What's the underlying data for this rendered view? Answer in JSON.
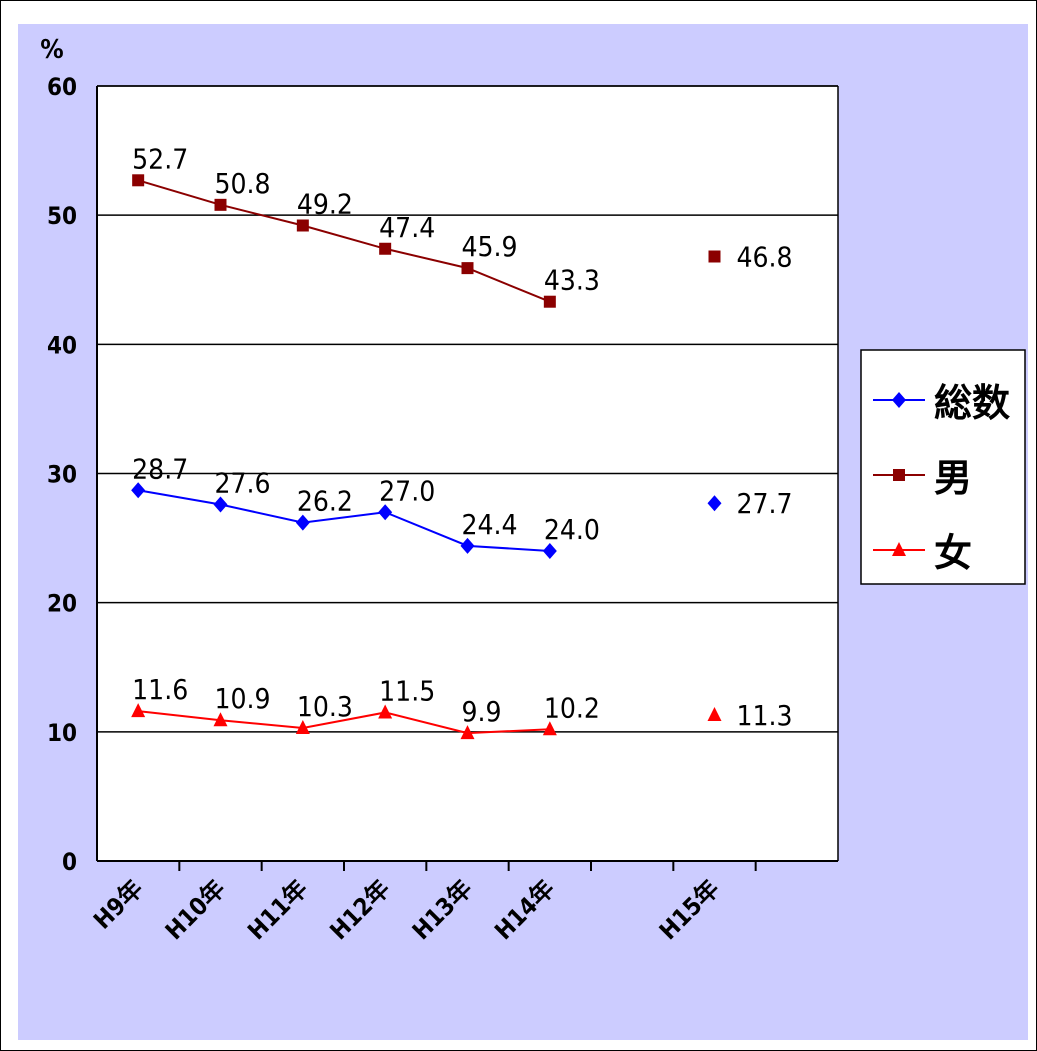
{
  "chart_data": {
    "type": "line",
    "title": "",
    "ylabel": "%",
    "xlabel": "",
    "ylim": [
      0,
      60
    ],
    "yticks": [
      0,
      10,
      20,
      30,
      40,
      50,
      60
    ],
    "categories": [
      "H9年",
      "H10年",
      "H11年",
      "H12年",
      "H13年",
      "H14年",
      "",
      "H15年",
      ""
    ],
    "grid": true,
    "legend_position": "right",
    "series": [
      {
        "name": "総数",
        "color": "#0000ff",
        "marker": "diamond",
        "values": [
          28.7,
          27.6,
          26.2,
          27.0,
          24.4,
          24.0,
          null,
          27.7,
          null
        ],
        "labels": [
          "28.7",
          "27.6",
          "26.2",
          "27.0",
          "24.4",
          "24.0",
          "",
          "27.7",
          ""
        ]
      },
      {
        "name": "男",
        "color": "#8b0000",
        "marker": "square",
        "values": [
          52.7,
          50.8,
          49.2,
          47.4,
          45.9,
          43.3,
          null,
          46.8,
          null
        ],
        "labels": [
          "52.7",
          "50.8",
          "49.2",
          "47.4",
          "45.9",
          "43.3",
          "",
          "46.8",
          ""
        ]
      },
      {
        "name": "女",
        "color": "#ff0000",
        "marker": "triangle",
        "values": [
          11.6,
          10.9,
          10.3,
          11.5,
          9.9,
          10.2,
          null,
          11.3,
          null
        ],
        "labels": [
          "11.6",
          "10.9",
          "10.3",
          "11.5",
          "9.9",
          "10.2",
          "",
          "11.3",
          ""
        ]
      }
    ]
  },
  "colors": {
    "chart_background": "#ccccff",
    "plot_background": "#ffffff",
    "gridline": "#000000"
  }
}
